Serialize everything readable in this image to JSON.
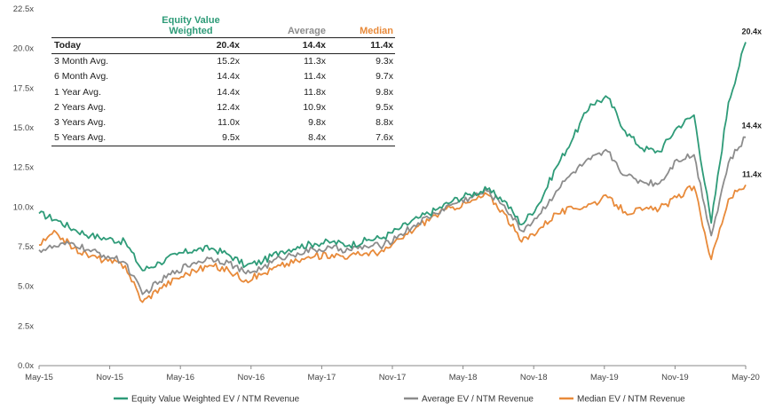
{
  "chart_data": {
    "type": "line",
    "xlabel": "",
    "ylabel": "",
    "x_ticks": [
      "May-15",
      "Nov-15",
      "May-16",
      "Nov-16",
      "May-17",
      "Nov-17",
      "May-18",
      "Nov-18",
      "May-19",
      "Nov-19",
      "May-20"
    ],
    "y_ticks": [
      "0.0x",
      "2.5x",
      "5.0x",
      "7.5x",
      "10.0x",
      "12.5x",
      "15.0x",
      "17.5x",
      "20.0x",
      "22.5x"
    ],
    "ylim": [
      0,
      22.5
    ],
    "grid": false,
    "legend": "bottom",
    "x": [
      "May-15",
      "Jul-15",
      "Aug-15",
      "Sep-15",
      "Nov-15",
      "Dec-15",
      "Feb-16",
      "Mar-16",
      "May-16",
      "Jul-16",
      "Aug-16",
      "Oct-16",
      "Nov-16",
      "Dec-16",
      "Feb-17",
      "Apr-17",
      "May-17",
      "Jul-17",
      "Aug-17",
      "Oct-17",
      "Nov-17",
      "Jan-18",
      "Mar-18",
      "May-18",
      "Jun-18",
      "Aug-18",
      "Sep-18",
      "Oct-18",
      "Nov-18",
      "Jan-19",
      "Feb-19",
      "Apr-19",
      "May-19",
      "Jun-19",
      "Aug-19",
      "Sep-19",
      "Nov-19",
      "Jan-20",
      "Feb-20",
      "Mar-20",
      "Apr-20",
      "May-20"
    ],
    "series": [
      {
        "name": "Equity Value Weighted EV / NTM Revenue",
        "color": "#2e9b78",
        "values": [
          9.6,
          9.2,
          8.6,
          8.2,
          8.0,
          7.8,
          6.0,
          6.5,
          7.0,
          7.3,
          7.4,
          7.0,
          6.3,
          6.6,
          7.2,
          7.5,
          7.7,
          7.8,
          7.6,
          7.9,
          8.1,
          8.7,
          9.3,
          9.8,
          10.4,
          10.8,
          11.1,
          10.4,
          8.9,
          10.2,
          12.5,
          14.4,
          16.5,
          16.9,
          14.8,
          13.7,
          13.5,
          15.0,
          15.8,
          9.0,
          16.6,
          20.4
        ]
      },
      {
        "name": "Average EV / NTM Revenue",
        "color": "#8c8c8c",
        "values": [
          7.3,
          7.5,
          7.7,
          7.2,
          6.9,
          6.5,
          4.5,
          5.3,
          6.0,
          6.5,
          6.8,
          6.5,
          5.8,
          6.2,
          6.8,
          7.1,
          7.3,
          7.4,
          7.3,
          7.5,
          7.6,
          8.3,
          9.0,
          9.6,
          10.2,
          10.6,
          11.0,
          10.1,
          8.5,
          9.5,
          11.0,
          12.2,
          13.0,
          13.5,
          12.0,
          11.6,
          11.5,
          13.0,
          13.3,
          8.2,
          12.8,
          14.4
        ]
      },
      {
        "name": "Median EV / NTM Revenue",
        "color": "#e88a3a",
        "values": [
          7.6,
          8.4,
          7.4,
          6.9,
          6.6,
          6.3,
          4.0,
          4.9,
          5.5,
          6.0,
          6.3,
          6.0,
          5.4,
          5.8,
          6.3,
          6.6,
          6.9,
          7.0,
          6.9,
          7.1,
          7.2,
          8.0,
          8.8,
          9.5,
          10.0,
          10.3,
          10.8,
          9.6,
          7.8,
          8.6,
          9.6,
          9.9,
          10.2,
          10.6,
          9.7,
          9.8,
          9.9,
          10.6,
          11.3,
          6.7,
          10.5,
          11.4
        ]
      }
    ],
    "end_labels": [
      "20.4x",
      "14.4x",
      "11.4x"
    ]
  },
  "stats_table": {
    "headers": {
      "label": "",
      "ev": "Equity Value\nWeighted",
      "avg": "Average",
      "med": "Median"
    },
    "rows": [
      {
        "label": "Today",
        "ev": "20.4x",
        "avg": "14.4x",
        "med": "11.4x"
      },
      {
        "label": "3 Month Avg.",
        "ev": "15.2x",
        "avg": "11.3x",
        "med": "9.3x"
      },
      {
        "label": "6 Month Avg.",
        "ev": "14.4x",
        "avg": "11.4x",
        "med": "9.7x"
      },
      {
        "label": "1 Year Avg.",
        "ev": "14.4x",
        "avg": "11.8x",
        "med": "9.8x"
      },
      {
        "label": "2 Years Avg.",
        "ev": "12.4x",
        "avg": "10.9x",
        "med": "9.5x"
      },
      {
        "label": "3 Years Avg.",
        "ev": "11.0x",
        "avg": "9.8x",
        "med": "8.8x"
      },
      {
        "label": "5 Years Avg.",
        "ev": "9.5x",
        "avg": "8.4x",
        "med": "7.6x"
      }
    ]
  }
}
